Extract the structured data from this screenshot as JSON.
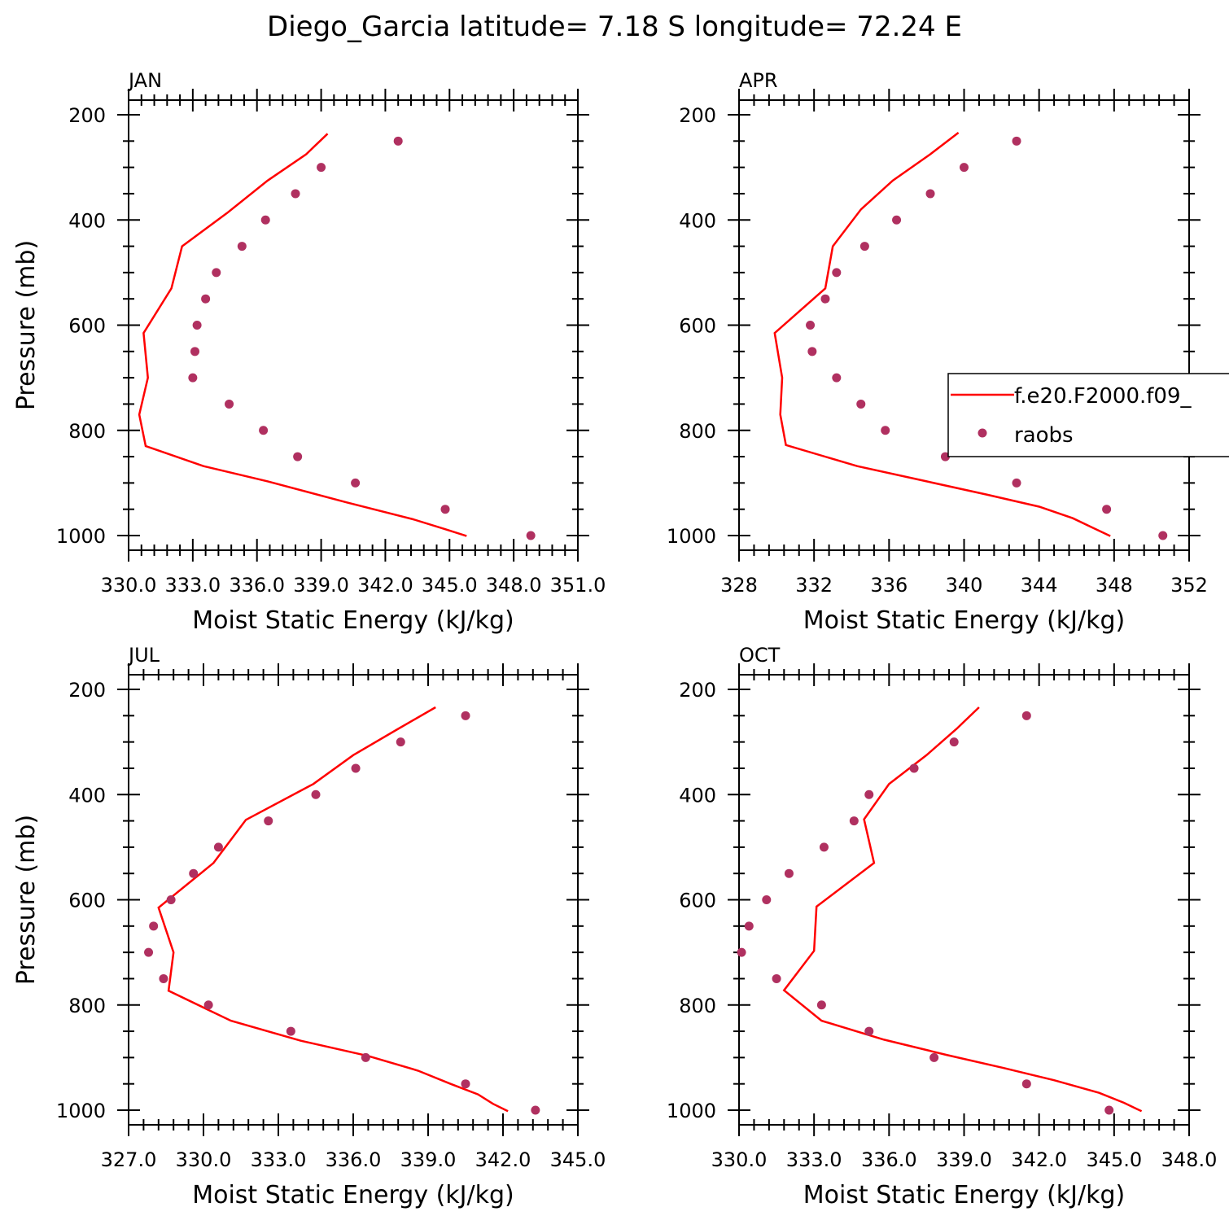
{
  "figure": {
    "title": "Diego_Garcia  latitude= 7.18 S longitude= 72.24 E"
  },
  "colors": {
    "model": "#ff0000",
    "obs": "#b03060",
    "axis": "#000000",
    "background": "#ffffff"
  },
  "legend": {
    "entries": [
      {
        "label": "f.e20.F2000.f09_",
        "style": "line"
      },
      {
        "label": "raobs",
        "style": "marker"
      }
    ]
  },
  "chart_data": [
    {
      "type": "line",
      "title": "JAN",
      "xlabel": "Moist Static Energy (kJ/kg)",
      "ylabel": "Pressure (mb)",
      "xlim": [
        330.0,
        351.0
      ],
      "ylim": [
        1000,
        200
      ],
      "x_ticks": [
        330.0,
        333.0,
        336.0,
        339.0,
        342.0,
        345.0,
        348.0,
        351.0
      ],
      "x_tick_labels": [
        "330.0",
        "333.0",
        "336.0",
        "339.0",
        "342.0",
        "345.0",
        "348.0",
        "351.0"
      ],
      "y_ticks": [
        200,
        400,
        600,
        800,
        1000
      ],
      "y_tick_labels": [
        "200",
        "400",
        "600",
        "800",
        "1000"
      ],
      "series": [
        {
          "name": "f.e20.F2000.f09_",
          "kind": "line",
          "x": [
            339.3,
            338.3,
            336.5,
            334.6,
            332.5,
            332.0,
            330.7,
            330.9,
            330.5,
            330.8,
            333.5,
            336.5,
            340.2,
            343.3,
            344.8,
            345.8
          ],
          "y": [
            236,
            275,
            325,
            387,
            450,
            530,
            615,
            700,
            770,
            830,
            868,
            897,
            937,
            969,
            988,
            1001
          ]
        },
        {
          "name": "raobs",
          "kind": "scatter",
          "x": [
            342.6,
            339.0,
            337.8,
            336.4,
            335.3,
            334.1,
            333.6,
            333.2,
            333.1,
            333.0,
            334.7,
            336.3,
            337.9,
            340.6,
            344.8,
            348.8
          ],
          "y": [
            250,
            300,
            350,
            400,
            450,
            500,
            550,
            600,
            650,
            700,
            750,
            800,
            850,
            900,
            950,
            1000
          ]
        }
      ]
    },
    {
      "type": "line",
      "title": "APR",
      "xlabel": "Moist Static Energy (kJ/kg)",
      "ylabel": "",
      "xlim": [
        328,
        352
      ],
      "ylim": [
        1000,
        200
      ],
      "x_ticks": [
        328,
        332,
        336,
        340,
        344,
        348,
        352
      ],
      "x_tick_labels": [
        "328",
        "332",
        "336",
        "340",
        "344",
        "348",
        "352"
      ],
      "y_ticks": [
        200,
        400,
        600,
        800,
        1000
      ],
      "y_tick_labels": [
        "200",
        "400",
        "600",
        "800",
        "1000"
      ],
      "series": [
        {
          "name": "f.e20.F2000.f09_",
          "kind": "line",
          "x": [
            339.7,
            338.2,
            336.2,
            334.5,
            333.0,
            332.6,
            329.9,
            330.3,
            330.2,
            330.5,
            334.3,
            338.0,
            341.2,
            344.0,
            345.8,
            346.8,
            347.8
          ],
          "y": [
            234,
            275,
            325,
            380,
            450,
            530,
            615,
            700,
            770,
            828,
            868,
            897,
            922,
            945,
            967,
            984,
            1001
          ]
        },
        {
          "name": "raobs",
          "kind": "scatter",
          "x": [
            342.8,
            340.0,
            338.2,
            336.4,
            334.7,
            333.2,
            332.6,
            331.8,
            331.9,
            333.2,
            334.5,
            335.8,
            339.0,
            342.8,
            347.6,
            350.6
          ],
          "y": [
            250,
            300,
            350,
            400,
            450,
            500,
            550,
            600,
            650,
            700,
            750,
            800,
            850,
            900,
            950,
            1000
          ]
        }
      ]
    },
    {
      "type": "line",
      "title": "JUL",
      "xlabel": "Moist Static Energy (kJ/kg)",
      "ylabel": "Pressure (mb)",
      "xlim": [
        327.0,
        345.0
      ],
      "ylim": [
        1000,
        200
      ],
      "x_ticks": [
        327.0,
        330.0,
        333.0,
        336.0,
        339.0,
        342.0,
        345.0
      ],
      "x_tick_labels": [
        "327.0",
        "330.0",
        "333.0",
        "336.0",
        "339.0",
        "342.0",
        "345.0"
      ],
      "y_ticks": [
        200,
        400,
        600,
        800,
        1000
      ],
      "y_tick_labels": [
        "200",
        "400",
        "600",
        "800",
        "1000"
      ],
      "series": [
        {
          "name": "f.e20.F2000.f09_",
          "kind": "line",
          "x": [
            339.3,
            337.8,
            336.0,
            334.4,
            331.7,
            330.4,
            328.2,
            328.8,
            328.6,
            331.1,
            333.9,
            336.6,
            338.6,
            339.9,
            341.0,
            341.6,
            342.2
          ],
          "y": [
            234,
            275,
            325,
            380,
            448,
            530,
            615,
            700,
            773,
            830,
            868,
            897,
            925,
            950,
            970,
            988,
            1002
          ]
        },
        {
          "name": "raobs",
          "kind": "scatter",
          "x": [
            340.5,
            337.9,
            336.1,
            334.5,
            332.6,
            330.6,
            329.6,
            328.7,
            328.0,
            327.8,
            328.4,
            330.2,
            333.5,
            336.5,
            340.5,
            343.3
          ],
          "y": [
            250,
            300,
            350,
            400,
            450,
            500,
            550,
            600,
            650,
            700,
            750,
            800,
            850,
            900,
            950,
            1000
          ]
        }
      ]
    },
    {
      "type": "line",
      "title": "OCT",
      "xlabel": "Moist Static Energy (kJ/kg)",
      "ylabel": "",
      "xlim": [
        330.0,
        348.0
      ],
      "ylim": [
        1000,
        200
      ],
      "x_ticks": [
        330.0,
        333.0,
        336.0,
        339.0,
        342.0,
        345.0,
        348.0
      ],
      "x_tick_labels": [
        "330.0",
        "333.0",
        "336.0",
        "339.0",
        "342.0",
        "345.0",
        "348.0"
      ],
      "y_ticks": [
        200,
        400,
        600,
        800,
        1000
      ],
      "y_tick_labels": [
        "200",
        "400",
        "600",
        "800",
        "1000"
      ],
      "series": [
        {
          "name": "f.e20.F2000.f09_",
          "kind": "line",
          "x": [
            339.6,
            338.7,
            337.5,
            336.0,
            335.0,
            335.4,
            333.1,
            333.0,
            331.8,
            333.3,
            335.8,
            338.3,
            340.6,
            342.6,
            344.4,
            345.4,
            346.1
          ],
          "y": [
            234,
            275,
            325,
            380,
            447,
            530,
            613,
            697,
            772,
            830,
            866,
            895,
            920,
            943,
            967,
            986,
            1002
          ]
        },
        {
          "name": "raobs",
          "kind": "scatter",
          "x": [
            341.5,
            338.6,
            337.0,
            335.2,
            334.6,
            333.4,
            332.0,
            331.1,
            330.4,
            330.1,
            331.5,
            333.3,
            335.2,
            337.8,
            341.5,
            344.8
          ],
          "y": [
            250,
            300,
            350,
            400,
            450,
            500,
            550,
            600,
            650,
            700,
            750,
            800,
            850,
            900,
            950,
            1000
          ]
        }
      ]
    }
  ]
}
